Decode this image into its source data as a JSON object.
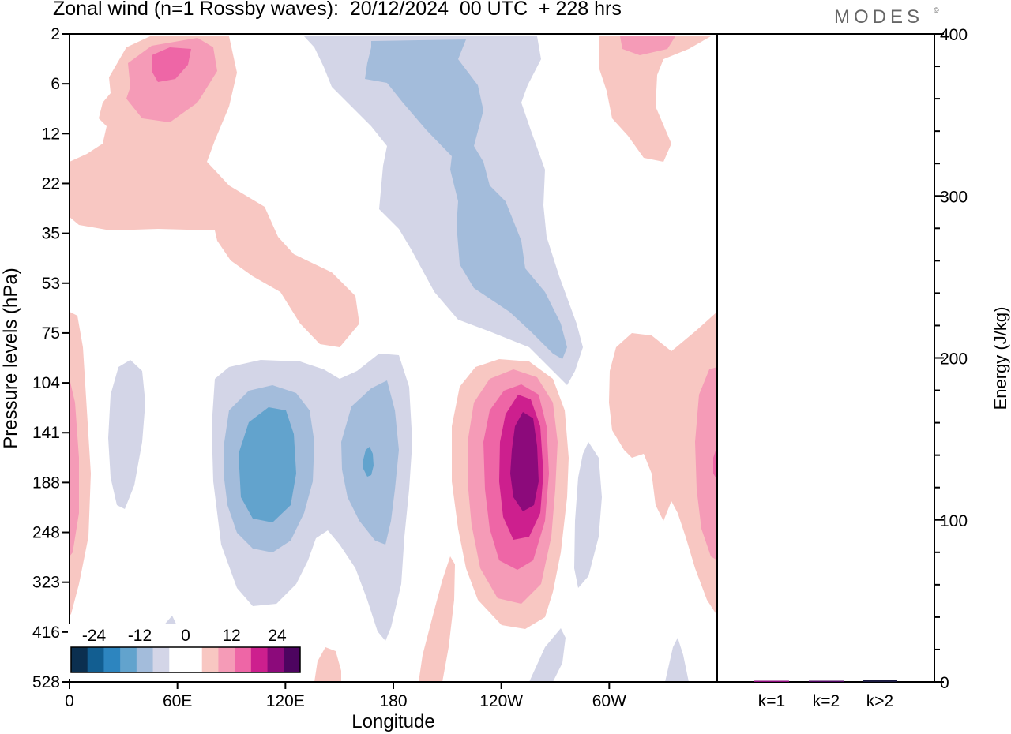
{
  "title": "Zonal wind (n=1 Rossby waves):  20/12/2024  00 UTC  + 228 hrs",
  "brand": "MODES",
  "brand_mark": "©",
  "chart_data": [
    {
      "type": "heatmap",
      "title": "Zonal wind (n=1 Rossby waves):  20/12/2024  00 UTC  + 228 hrs",
      "xlabel": "Longitude",
      "ylabel": "Pressure levels (hPa)",
      "x_ticks": [
        "0",
        "60E",
        "120E",
        "180",
        "120W",
        "60W"
      ],
      "x_range_deg": [
        0,
        360
      ],
      "y_ticks": [
        "2",
        "6",
        "12",
        "22",
        "35",
        "53",
        "75",
        "104",
        "141",
        "188",
        "248",
        "323",
        "416",
        "528"
      ],
      "y_direction": "pressure increases downward",
      "colorbar": {
        "ticks": [
          "-24",
          "-12",
          "0",
          "12",
          "24"
        ],
        "levels": [
          -30,
          -24,
          -18,
          -12,
          -6,
          -3,
          3,
          6,
          12,
          18,
          24,
          30
        ],
        "colors": [
          "#0b2f4f",
          "#125e91",
          "#2d85bf",
          "#62a3cd",
          "#a3bcdb",
          "#d3d5e7",
          "#ffffff",
          "#ffffff",
          "#f8c7c2",
          "#f59bb7",
          "#ee66a6",
          "#cd1f8e",
          "#8c0a7b",
          "#4d0460"
        ],
        "placement": "bottom-left"
      },
      "features": [
        {
          "lon": 110,
          "pressure_hPa": 170,
          "sign": "negative",
          "peak": -18
        },
        {
          "lon": 167,
          "pressure_hPa": 160,
          "sign": "negative",
          "peak": -18
        },
        {
          "lon": 250,
          "pressure_hPa": 170,
          "sign": "positive",
          "peak": 27
        },
        {
          "lon": 360,
          "pressure_hPa": 170,
          "sign": "positive",
          "peak": 18
        },
        {
          "lon": 0,
          "pressure_hPa": 170,
          "sign": "positive",
          "peak": 12
        },
        {
          "lon": 53,
          "pressure_hPa": 4,
          "sign": "positive",
          "peak": 18
        },
        {
          "lon": 225,
          "pressure_hPa": 20,
          "sign": "negative",
          "peak": -12
        }
      ]
    },
    {
      "type": "bar",
      "ylabel": "Energy (J/kg)",
      "ylim": [
        0,
        400
      ],
      "y_ticks": [
        0,
        100,
        200,
        300,
        400
      ],
      "categories": [
        "k=1",
        "k=2",
        "k>2"
      ],
      "values": [
        0.4,
        0.6,
        1.2
      ],
      "bar_colors": [
        "#8c0a7b",
        "#4d0460",
        "#1a1a40"
      ]
    }
  ]
}
